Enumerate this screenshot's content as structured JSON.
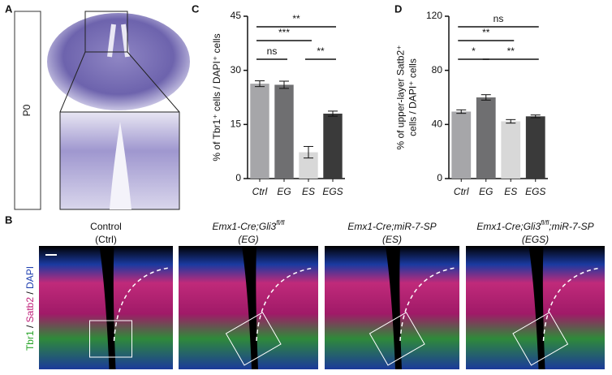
{
  "figure": {
    "panel_a": {
      "label": "A",
      "stage": "P0"
    },
    "panel_b": {
      "label": "B",
      "stain": {
        "tbr1": "Tbr1",
        "sep1": " / ",
        "satb2": "Satb2",
        "sep2": " / ",
        "dapi": "DAPI"
      },
      "images": [
        {
          "title": "Control",
          "title_sup": "",
          "abbr": "(Ctrl)"
        },
        {
          "title": "Emx1-Cre;Gli3",
          "title_sup": "fl/fl",
          "abbr": "(EG)"
        },
        {
          "title": "Emx1-Cre;miR-7-SP",
          "title_sup": "",
          "abbr": "(ES)"
        },
        {
          "title": "Emx1-Cre;Gli3",
          "title_sup": "fl/fl",
          "title_tail": ";miR-7-SP",
          "abbr": "(EGS)"
        }
      ]
    }
  },
  "chart_data": [
    {
      "type": "bar",
      "panel_label": "C",
      "y_label": [
        "% of Tbr1⁺ cells / DAPI⁺ cells"
      ],
      "categories": [
        "Ctrl",
        "EG",
        "ES",
        "EGS"
      ],
      "values": [
        26.3,
        26,
        7.3,
        18
      ],
      "errors": [
        0.8,
        1.0,
        1.6,
        0.7
      ],
      "colors": [
        "#a6a6a9",
        "#6f6f71",
        "#d8d8d8",
        "#3a3a3a"
      ],
      "ylim": [
        0,
        45
      ],
      "yticks": [
        0,
        15,
        30,
        45
      ],
      "annotations": [
        "ns",
        "***",
        "**",
        "**"
      ]
    },
    {
      "type": "bar",
      "panel_label": "D",
      "y_label": [
        "% of upper-layer Satb2⁺",
        "cells / DAPI⁺ cells"
      ],
      "categories": [
        "Ctrl",
        "EG",
        "ES",
        "EGS"
      ],
      "values": [
        49.5,
        60,
        42.3,
        46
      ],
      "errors": [
        1.3,
        2,
        1.3,
        1
      ],
      "colors": [
        "#a6a6a9",
        "#6f6f71",
        "#d8d8d8",
        "#3a3a3a"
      ],
      "ylim": [
        0,
        120
      ],
      "yticks": [
        0,
        40,
        80,
        120
      ],
      "annotations": [
        "ns",
        "**",
        "*",
        "**"
      ]
    }
  ]
}
